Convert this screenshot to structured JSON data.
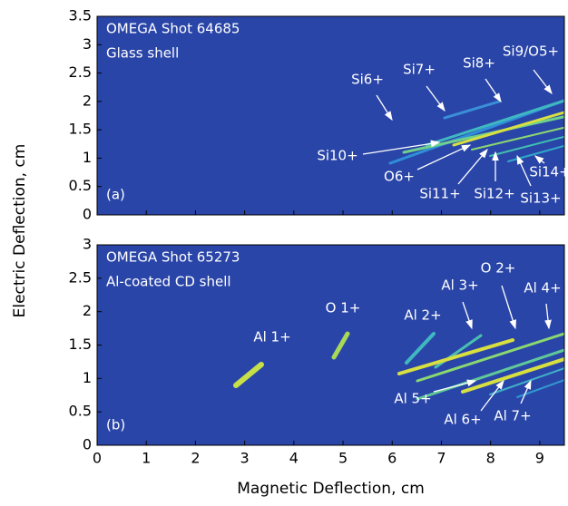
{
  "chart_data": [
    {
      "type": "image",
      "title": "OMEGA Shot 64685",
      "subtitle": "Glass shell",
      "panel_label": "(a)",
      "ylabel": "Electric Deflection, cm",
      "xlim": [
        0,
        9.5
      ],
      "ylim": [
        0,
        3.5
      ],
      "xticks": [
        0,
        1,
        2,
        3,
        4,
        5,
        6,
        7,
        8,
        9
      ],
      "yticks": [
        0,
        0.5,
        1,
        1.5,
        2,
        2.5,
        3,
        3.5
      ],
      "annotations": [
        "Si6+",
        "Si7+",
        "Si8+",
        "Si9/O5+",
        "Si10+",
        "O6+",
        "Si11+",
        "Si12+",
        "Si13+",
        "Si14+"
      ]
    },
    {
      "type": "image",
      "title": "OMEGA Shot 65273",
      "subtitle": "Al-coated CD shell",
      "panel_label": "(b)",
      "xlabel": "Magnetic Deflection, cm",
      "xlim": [
        0,
        9.5
      ],
      "ylim": [
        0,
        3
      ],
      "xticks": [
        0,
        1,
        2,
        3,
        4,
        5,
        6,
        7,
        8,
        9
      ],
      "yticks": [
        0,
        0.5,
        1,
        1.5,
        2,
        2.5,
        3
      ],
      "annotations": [
        "Al 1+",
        "O 1+",
        "Al 2+",
        "Al 3+",
        "O 2+",
        "Al 4+",
        "Al 5+",
        "Al 6+",
        "Al 7+"
      ]
    }
  ]
}
